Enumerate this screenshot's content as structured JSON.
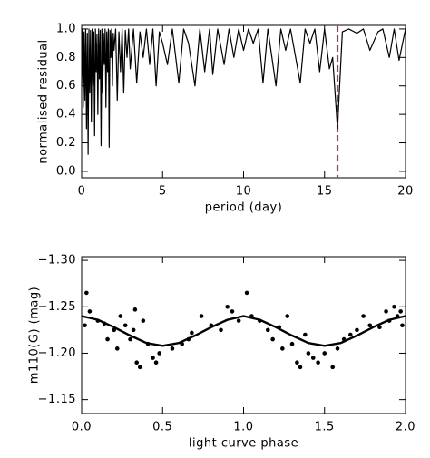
{
  "chart_data": [
    {
      "type": "line",
      "xlabel": "period (day)",
      "ylabel": "normalised residual",
      "xlim": [
        0,
        20
      ],
      "ylim": [
        -0.045,
        1.025
      ],
      "xticks": [
        0,
        5,
        10,
        15,
        20
      ],
      "yticks": [
        {
          "value": 0,
          "label": "0.0"
        },
        0.2,
        0.4,
        0.6,
        0.8,
        {
          "value": 1,
          "label": "1.0"
        }
      ],
      "vlines": [
        {
          "x": 15.8,
          "color": "#e3262b",
          "style": "dashed"
        }
      ],
      "series": [
        {
          "type": "line",
          "color": "#000000",
          "x": [
            0.0,
            0.05,
            0.1,
            0.15,
            0.2,
            0.25,
            0.3,
            0.35,
            0.4,
            0.45,
            0.5,
            0.55,
            0.6,
            0.65,
            0.7,
            0.75,
            0.8,
            0.85,
            0.9,
            0.95,
            1.0,
            1.05,
            1.1,
            1.15,
            1.2,
            1.25,
            1.3,
            1.35,
            1.4,
            1.45,
            1.5,
            1.55,
            1.6,
            1.65,
            1.7,
            1.75,
            1.8,
            1.85,
            1.9,
            1.95,
            2.0,
            2.1,
            2.2,
            2.3,
            2.4,
            2.5,
            2.6,
            2.7,
            2.8,
            2.9,
            3.0,
            3.2,
            3.4,
            3.6,
            3.8,
            4.0,
            4.2,
            4.4,
            4.6,
            4.8,
            5.0,
            5.3,
            5.6,
            6.0,
            6.3,
            6.6,
            7.0,
            7.3,
            7.6,
            7.9,
            8.1,
            8.4,
            8.8,
            9.1,
            9.4,
            9.7,
            10.0,
            10.3,
            10.6,
            10.9,
            11.2,
            11.5,
            12.0,
            12.3,
            12.6,
            12.9,
            13.5,
            13.8,
            14.1,
            14.4,
            14.7,
            15.0,
            15.3,
            15.5,
            15.8,
            16.1,
            16.5,
            17.0,
            17.4,
            17.8,
            18.3,
            18.6,
            19.0,
            19.3,
            19.6,
            20.0
          ],
          "values": [
            0.6,
            1.0,
            0.45,
            0.98,
            0.5,
            1.0,
            0.3,
            0.97,
            0.12,
            1.0,
            0.55,
            0.99,
            0.35,
            1.0,
            0.6,
            0.98,
            0.25,
            1.0,
            0.7,
            0.96,
            0.4,
            1.0,
            0.65,
            0.99,
            0.18,
            1.0,
            0.55,
            0.97,
            0.75,
            1.0,
            0.45,
            0.98,
            0.7,
            1.0,
            0.17,
            0.99,
            0.8,
            1.0,
            0.6,
            0.97,
            0.85,
            1.0,
            0.5,
            0.98,
            0.7,
            1.0,
            0.55,
            0.99,
            0.8,
            1.0,
            0.72,
            1.0,
            0.62,
            0.98,
            0.8,
            1.0,
            0.75,
            1.0,
            0.6,
            0.98,
            0.9,
            0.75,
            1.0,
            0.62,
            1.0,
            0.9,
            0.6,
            1.0,
            0.7,
            1.0,
            0.68,
            1.0,
            0.75,
            1.0,
            0.8,
            1.0,
            0.85,
            1.0,
            0.9,
            1.0,
            0.62,
            1.0,
            0.6,
            1.0,
            0.85,
            1.0,
            0.62,
            1.0,
            0.9,
            1.0,
            0.7,
            1.0,
            0.72,
            0.8,
            0.3,
            0.98,
            1.0,
            0.97,
            1.0,
            0.85,
            0.98,
            1.0,
            0.8,
            1.0,
            0.78,
            1.0
          ]
        }
      ]
    },
    {
      "type": "scatter",
      "xlabel": "light curve phase",
      "ylabel": "m110(G) (mag)",
      "xlim": [
        0,
        2
      ],
      "ylim": [
        -1.135,
        -1.304
      ],
      "xticks": [
        {
          "value": 0,
          "label": "0.0"
        },
        0.5,
        {
          "value": 1,
          "label": "1.0"
        },
        1.5,
        {
          "value": 2,
          "label": "2.0"
        }
      ],
      "yticks": [
        {
          "value": -1.3,
          "label": "−1.30"
        },
        {
          "value": -1.25,
          "label": "−1.25"
        },
        {
          "value": -1.2,
          "label": "−1.20"
        },
        {
          "value": -1.15,
          "label": "−1.15"
        }
      ],
      "series": [
        {
          "type": "scatter",
          "color": "#000000",
          "x": [
            0.02,
            0.03,
            0.05,
            0.1,
            0.14,
            0.16,
            0.2,
            0.22,
            0.24,
            0.27,
            0.3,
            0.32,
            0.33,
            0.34,
            0.36,
            0.38,
            0.41,
            0.44,
            0.46,
            0.48,
            0.56,
            0.62,
            0.66,
            0.68,
            0.74,
            0.8,
            0.86,
            0.9,
            0.93,
            0.97,
            1.02,
            1.05,
            1.1,
            1.15,
            1.18,
            1.22,
            1.24,
            1.27,
            1.3,
            1.33,
            1.35,
            1.38,
            1.4,
            1.43,
            1.46,
            1.5,
            1.55,
            1.58,
            1.62,
            1.66,
            1.7,
            1.74,
            1.78,
            1.84,
            1.88,
            1.9,
            1.93,
            1.95,
            1.97,
            1.98
          ],
          "values": [
            -1.23,
            -1.265,
            -1.245,
            -1.235,
            -1.232,
            -1.215,
            -1.225,
            -1.205,
            -1.24,
            -1.23,
            -1.215,
            -1.225,
            -1.247,
            -1.19,
            -1.185,
            -1.235,
            -1.21,
            -1.195,
            -1.19,
            -1.2,
            -1.205,
            -1.21,
            -1.215,
            -1.222,
            -1.24,
            -1.23,
            -1.225,
            -1.25,
            -1.245,
            -1.235,
            -1.265,
            -1.24,
            -1.235,
            -1.225,
            -1.215,
            -1.228,
            -1.205,
            -1.24,
            -1.21,
            -1.19,
            -1.185,
            -1.22,
            -1.2,
            -1.195,
            -1.19,
            -1.2,
            -1.185,
            -1.205,
            -1.215,
            -1.22,
            -1.225,
            -1.24,
            -1.23,
            -1.228,
            -1.245,
            -1.235,
            -1.25,
            -1.24,
            -1.245,
            -1.23
          ]
        },
        {
          "type": "line",
          "color": "#000000",
          "x": [
            0,
            0.1,
            0.2,
            0.3,
            0.4,
            0.5,
            0.6,
            0.7,
            0.8,
            0.9,
            1.0,
            1.1,
            1.2,
            1.3,
            1.4,
            1.5,
            1.6,
            1.7,
            1.8,
            1.9,
            2.0
          ],
          "values": [
            -1.24,
            -1.236,
            -1.228,
            -1.219,
            -1.211,
            -1.208,
            -1.211,
            -1.219,
            -1.228,
            -1.236,
            -1.24,
            -1.236,
            -1.228,
            -1.219,
            -1.211,
            -1.208,
            -1.211,
            -1.219,
            -1.228,
            -1.236,
            -1.24
          ]
        }
      ]
    }
  ]
}
